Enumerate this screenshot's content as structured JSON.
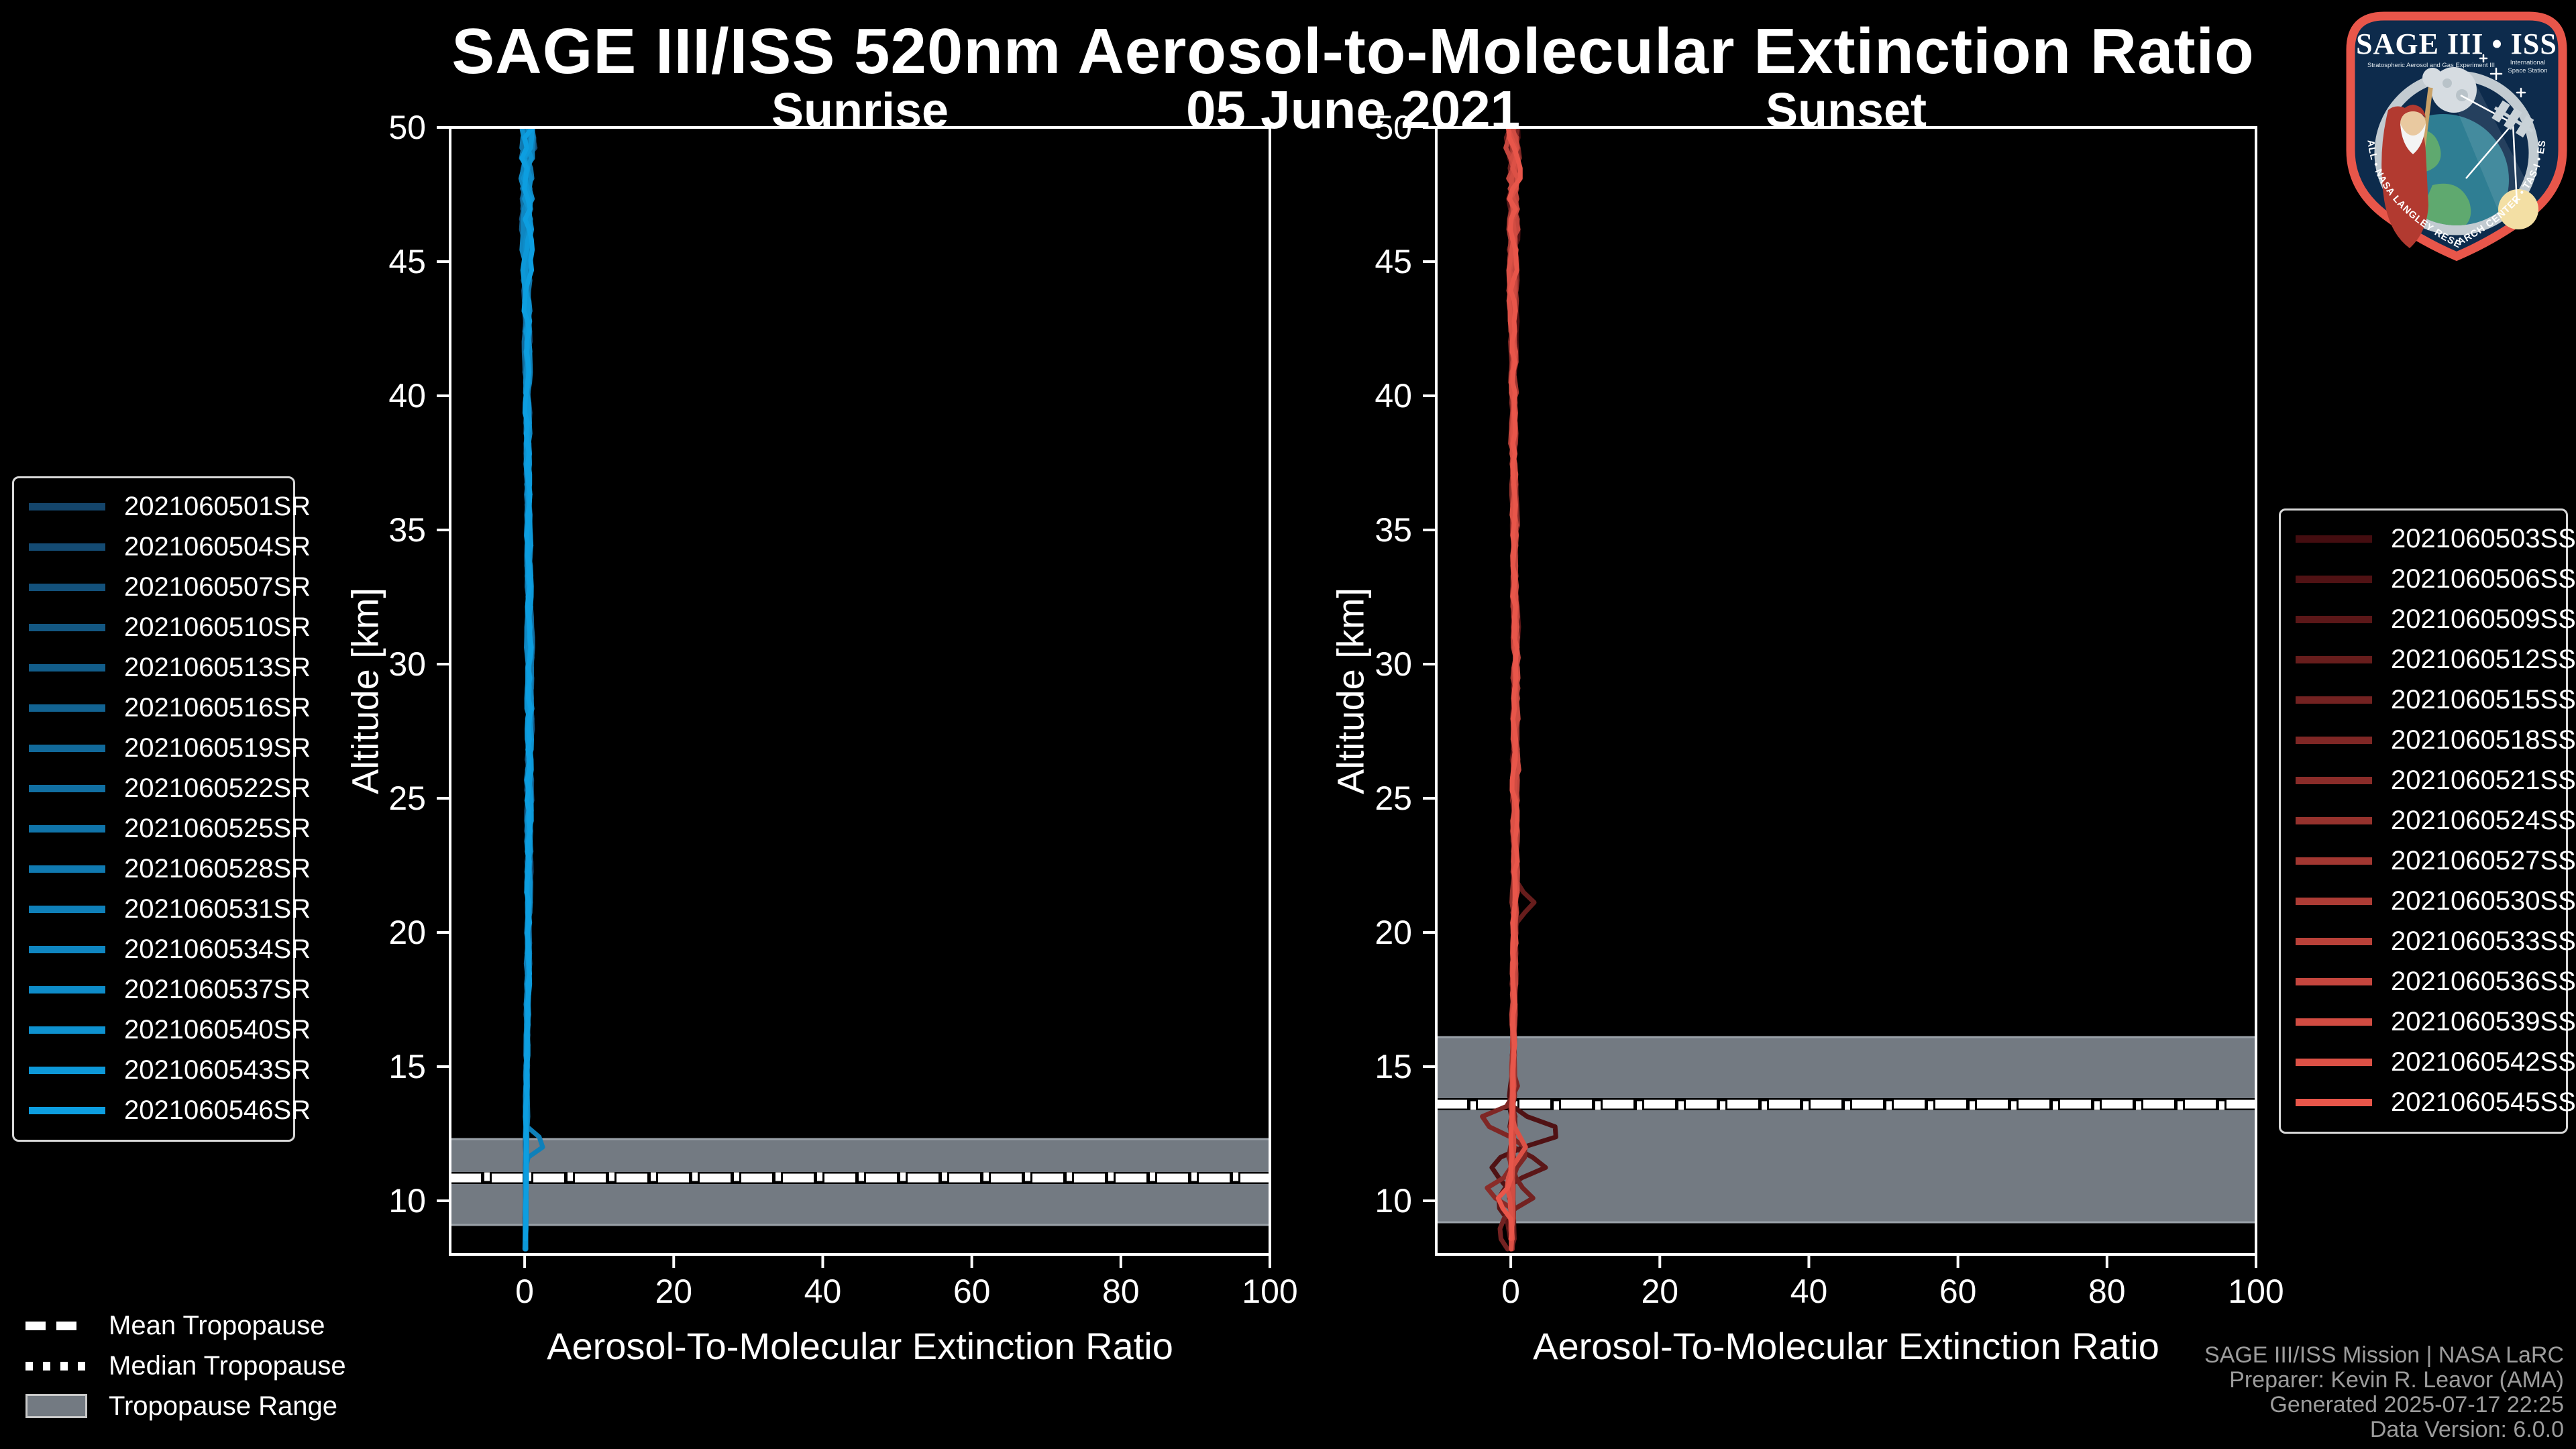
{
  "page": {
    "title": "SAGE III/ISS 520nm Aerosol-to-Molecular Extinction Ratio",
    "subtitle": "05 June 2021"
  },
  "attribution": {
    "line1": "SAGE III/ISS Mission | NASA LaRC",
    "line2": "Preparer: Kevin R. Leavor (AMA)",
    "line3": "Generated 2025-07-17 22:25",
    "line4": "Data Version: 6.0.0"
  },
  "tropopause_legend": {
    "mean": "Mean Tropopause",
    "median": "Median Tropopause",
    "range": "Tropopause Range"
  },
  "logo": {
    "title": "SAGE III • ISS",
    "subtitle_left": "Stratospheric Aerosol and Gas Experiment III",
    "subtitle_right1": "International",
    "subtitle_right2": "Space Station",
    "ring_text": "BALL • NASA LANGLEY RESEARCH CENTER • TAS-I • ESA"
  },
  "colors": {
    "background": "#000000",
    "axis": "#ffffff",
    "tropopause_band": "#737a82",
    "tropopause_band_edge": "#9aa1a8",
    "attribution_text": "#9c9c9c",
    "sunrise_start": "#14456b",
    "sunrise_end": "#0d9ee0",
    "sunset_start": "#440d10",
    "sunset_end": "#e8564a",
    "logo_border": "#e8564a",
    "logo_field": "#0d2b4c"
  },
  "chart_data": {
    "type": "line",
    "xlabel": "Aerosol-To-Molecular Extinction Ratio",
    "ylabel": "Altitude [km]",
    "xlim": [
      -10,
      100
    ],
    "ylim": [
      8,
      50
    ],
    "xticks": [
      0,
      20,
      40,
      60,
      80,
      100
    ],
    "yticks": [
      10,
      15,
      20,
      25,
      30,
      35,
      40,
      45,
      50
    ],
    "grid": false,
    "description": "Vertical extinction-ratio profiles; all profiles cluster near 0 over 8-50 km with spread widening near 50 km and localized excursions near the tropopause.",
    "center_profile": [
      [
        8,
        0.1
      ],
      [
        14,
        0.25
      ],
      [
        22,
        0.55
      ],
      [
        30,
        0.7
      ],
      [
        38,
        0.4
      ],
      [
        44,
        0.3
      ],
      [
        50,
        0.35
      ]
    ],
    "panels": [
      {
        "title": "Sunrise",
        "event_type": "SR",
        "color_start": "#14456b",
        "color_end": "#0d9ee0",
        "series": [
          "2021060501SR",
          "2021060504SR",
          "2021060507SR",
          "2021060510SR",
          "2021060513SR",
          "2021060516SR",
          "2021060519SR",
          "2021060522SR",
          "2021060525SR",
          "2021060528SR",
          "2021060531SR",
          "2021060534SR",
          "2021060537SR",
          "2021060540SR",
          "2021060543SR",
          "2021060546SR"
        ],
        "tropopause": {
          "mean_km": 10.85,
          "median_km": 10.9,
          "range_km": [
            9.1,
            12.3
          ]
        },
        "noise_profile": [
          [
            8,
            0.18
          ],
          [
            12,
            0.22
          ],
          [
            16,
            0.28
          ],
          [
            20,
            0.4
          ],
          [
            26,
            0.55
          ],
          [
            31,
            0.5
          ],
          [
            36,
            0.4
          ],
          [
            42,
            0.55
          ],
          [
            46,
            0.9
          ],
          [
            50,
            1.5
          ]
        ],
        "spikes": [
          {
            "series": 10,
            "alt": 12.15,
            "value": 2.6,
            "w": 0.35,
            "zig": false
          }
        ]
      },
      {
        "title": "Sunset",
        "event_type": "SS",
        "color_start": "#440d10",
        "color_end": "#e8564a",
        "series": [
          "2021060503SS",
          "2021060506SS",
          "2021060509SS",
          "2021060512SS",
          "2021060515SS",
          "2021060518SS",
          "2021060521SS",
          "2021060524SS",
          "2021060527SS",
          "2021060530SS",
          "2021060533SS",
          "2021060536SS",
          "2021060539SS",
          "2021060542SS",
          "2021060545SS"
        ],
        "tropopause": {
          "mean_km": 13.6,
          "median_km": 13.55,
          "range_km": [
            9.2,
            16.1
          ]
        },
        "noise_profile": [
          [
            8,
            0.22
          ],
          [
            12,
            0.3
          ],
          [
            16,
            0.32
          ],
          [
            20,
            0.45
          ],
          [
            26,
            0.6
          ],
          [
            31,
            0.55
          ],
          [
            36,
            0.45
          ],
          [
            42,
            0.6
          ],
          [
            46,
            1.0
          ],
          [
            50,
            1.6
          ]
        ],
        "spikes": [
          {
            "series": 1,
            "alt": 12.55,
            "value": 6.8,
            "w": 0.5,
            "zig": true
          },
          {
            "series": 2,
            "alt": 11.3,
            "value": 4.2,
            "w": 0.45,
            "zig": true
          },
          {
            "series": 3,
            "alt": 21.1,
            "value": 2.2,
            "w": 0.4,
            "zig": false
          },
          {
            "series": 4,
            "alt": 10.15,
            "value": 3.1,
            "w": 0.4,
            "zig": true
          },
          {
            "series": 5,
            "alt": 13.0,
            "value": -4.3,
            "w": 0.45,
            "zig": true
          },
          {
            "series": 6,
            "alt": 10.4,
            "value": -3.6,
            "w": 0.4,
            "zig": false
          },
          {
            "series": 13,
            "alt": 12.0,
            "value": 1.6,
            "w": 0.5,
            "zig": true
          },
          {
            "series": 14,
            "alt": 10.0,
            "value": -1.8,
            "w": 0.45,
            "zig": false
          }
        ]
      }
    ]
  }
}
